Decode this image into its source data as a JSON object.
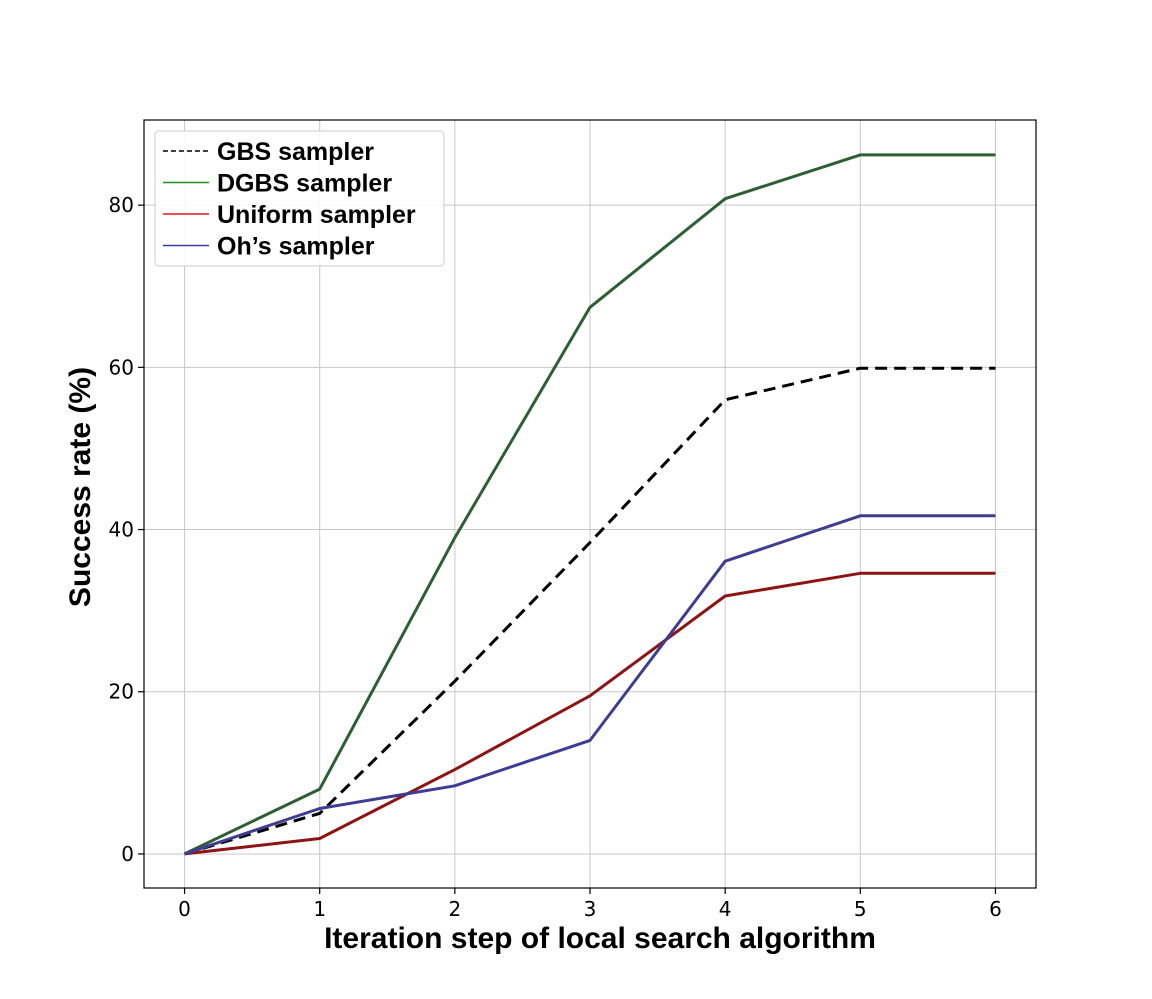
{
  "chart_data": {
    "type": "line",
    "title": "",
    "xlabel": "Iteration step of local search algorithm",
    "ylabel": "Success rate (%)",
    "x": [
      0,
      1,
      2,
      3,
      4,
      5,
      6
    ],
    "xlim": [
      -0.3,
      6.3
    ],
    "ylim": [
      -4.2,
      90.5
    ],
    "xticks": [
      0,
      1,
      2,
      3,
      4,
      5,
      6
    ],
    "yticks": [
      0,
      20,
      40,
      60,
      80
    ],
    "grid": true,
    "legend_position": "top-left",
    "series": [
      {
        "name": "GBS sampler",
        "color": "#000000",
        "dash": "dashed",
        "values": [
          0,
          5.0,
          21.3,
          38.4,
          56.0,
          59.9,
          59.9
        ]
      },
      {
        "name": "DGBS sampler",
        "color": "#2e5e34",
        "dash": "solid",
        "values": [
          0,
          8.0,
          39.0,
          67.4,
          80.8,
          86.2,
          86.2
        ]
      },
      {
        "name": "Uniform sampler",
        "color": "#8e1414",
        "dash": "solid",
        "values": [
          0,
          1.9,
          10.4,
          19.5,
          31.8,
          34.6,
          34.6
        ]
      },
      {
        "name": "Oh’s sampler",
        "color": "#3e3d92",
        "dash": "solid",
        "values": [
          0,
          5.6,
          8.4,
          14.0,
          36.1,
          41.7,
          41.7
        ]
      }
    ],
    "legend_colors": [
      "#000000",
      "#1f8f1f",
      "#e01b1b",
      "#3a3ab0"
    ]
  }
}
